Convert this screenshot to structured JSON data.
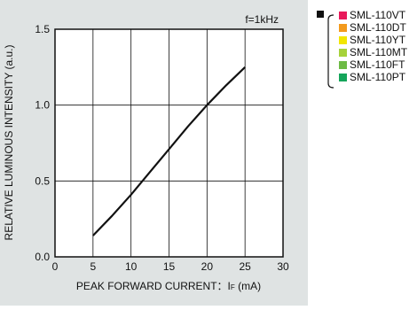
{
  "chart_data": {
    "type": "line",
    "xlabel": "PEAK FORWARD CURRENT：IF (mA)",
    "xlabel_main": "PEAK FORWARD CURRENT：I",
    "xlabel_sub": "F",
    "xlabel_unit": " (mA)",
    "ylabel": "RELATIVE LUMINOUS INTENSITY (a.u.)",
    "annotation": "f=1kHz",
    "xlim": [
      0,
      30
    ],
    "ylim": [
      0.0,
      1.5
    ],
    "x_ticks": [
      0,
      5,
      10,
      15,
      20,
      25,
      30
    ],
    "x_tick_labels": [
      "0",
      "5",
      "10",
      "15",
      "20",
      "25",
      "30"
    ],
    "y_ticks": [
      0.0,
      0.5,
      1.0,
      1.5
    ],
    "y_tick_labels": [
      "0.0",
      "0.5",
      "1.0",
      "1.5"
    ],
    "grid": true,
    "series": [
      {
        "x": [
          5,
          7.5,
          10,
          12.5,
          15,
          17.5,
          20,
          22.5,
          25
        ],
        "y": [
          0.14,
          0.27,
          0.41,
          0.56,
          0.71,
          0.86,
          1.0,
          1.13,
          1.25
        ],
        "color": "#111111"
      }
    ]
  },
  "legend": {
    "marker_color": "#111111",
    "items": [
      {
        "label": "SML-110VT",
        "color": "#e8195a"
      },
      {
        "label": "SML-110DT",
        "color": "#f39a1c"
      },
      {
        "label": "SML-110YT",
        "color": "#f2e600"
      },
      {
        "label": "SML-110MT",
        "color": "#a6d23a"
      },
      {
        "label": "SML-110FT",
        "color": "#6dbb45"
      },
      {
        "label": "SML-110PT",
        "color": "#15a55a"
      }
    ]
  }
}
